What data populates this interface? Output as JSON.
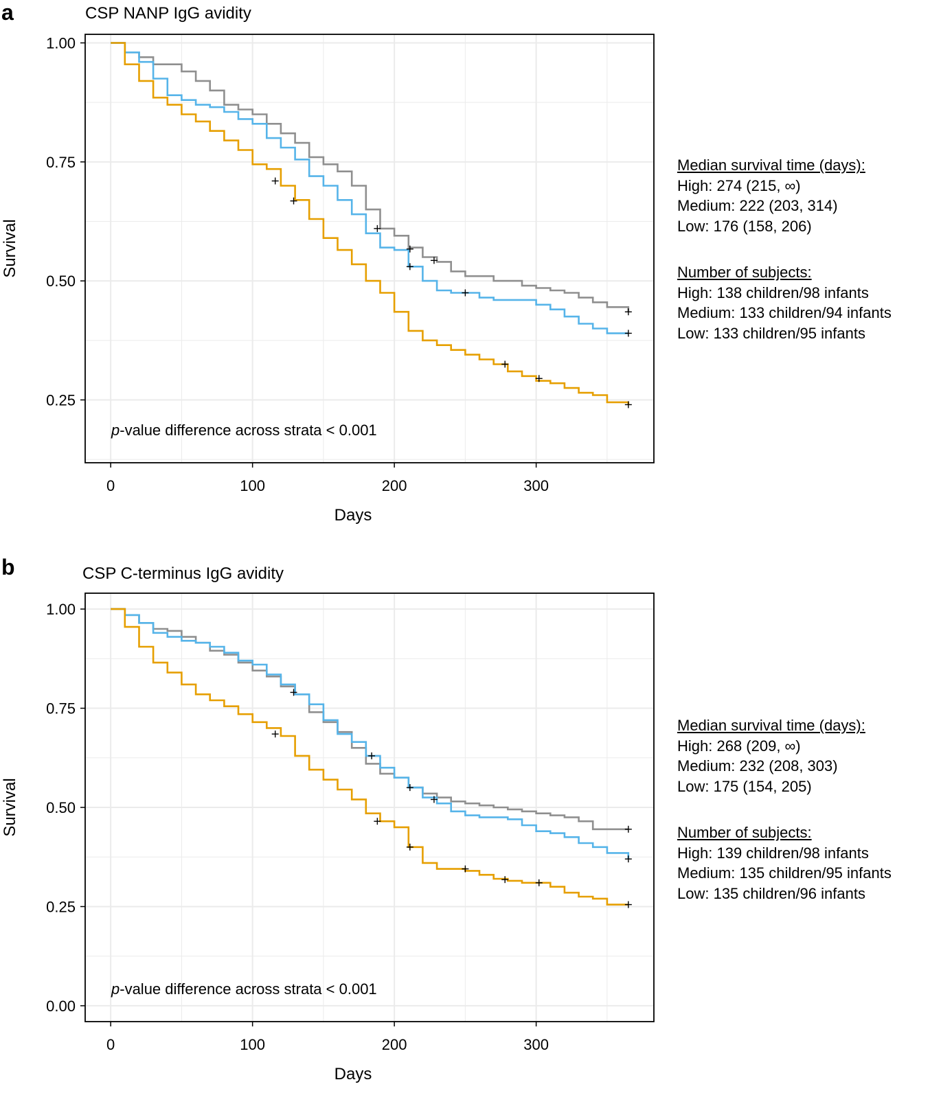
{
  "colors": {
    "high": "#8f8f8f",
    "medium": "#56b4e9",
    "low": "#e69f00",
    "censor": "#000000",
    "grid": "#ebebeb"
  },
  "chart_data": [
    {
      "type": "line",
      "panel": "a",
      "title": "CSP NANP IgG avidity",
      "xlabel": "Days",
      "ylabel": "Survival",
      "xlim": [
        -18,
        383
      ],
      "ylim": [
        0.118,
        1.018
      ],
      "xticks": [
        0,
        100,
        200,
        300
      ],
      "xtick_labels": [
        "0",
        "100",
        "200",
        "300"
      ],
      "yticks": [
        0.25,
        0.5,
        0.75,
        1.0
      ],
      "ytick_labels": [
        "0.25",
        "0.50",
        "0.75",
        "1.00"
      ],
      "pvalue_prefix": "p",
      "pvalue_text": "-value difference across strata  < 0.001",
      "series": [
        {
          "name": "High",
          "color_key": "high",
          "x": [
            0,
            10,
            20,
            30,
            40,
            50,
            60,
            70,
            80,
            90,
            100,
            110,
            120,
            130,
            140,
            150,
            160,
            170,
            180,
            190,
            200,
            210,
            220,
            230,
            240,
            250,
            260,
            270,
            280,
            290,
            300,
            310,
            320,
            330,
            340,
            350,
            365
          ],
          "y": [
            1.0,
            0.98,
            0.97,
            0.955,
            0.955,
            0.94,
            0.92,
            0.9,
            0.87,
            0.86,
            0.85,
            0.83,
            0.81,
            0.79,
            0.76,
            0.745,
            0.73,
            0.7,
            0.65,
            0.61,
            0.595,
            0.57,
            0.55,
            0.54,
            0.52,
            0.51,
            0.51,
            0.5,
            0.5,
            0.49,
            0.485,
            0.48,
            0.475,
            0.465,
            0.455,
            0.445,
            0.435
          ],
          "censor_x": [
            188,
            211,
            228,
            365
          ],
          "censor_y": [
            0.61,
            0.567,
            0.543,
            0.435
          ]
        },
        {
          "name": "Medium",
          "color_key": "medium",
          "x": [
            0,
            10,
            20,
            30,
            40,
            50,
            60,
            70,
            80,
            90,
            100,
            110,
            120,
            130,
            140,
            150,
            160,
            170,
            180,
            190,
            200,
            210,
            220,
            230,
            240,
            250,
            260,
            270,
            280,
            290,
            300,
            310,
            320,
            330,
            340,
            350,
            365
          ],
          "y": [
            1.0,
            0.98,
            0.96,
            0.925,
            0.89,
            0.88,
            0.87,
            0.865,
            0.855,
            0.84,
            0.83,
            0.8,
            0.78,
            0.755,
            0.72,
            0.7,
            0.67,
            0.64,
            0.6,
            0.57,
            0.565,
            0.53,
            0.5,
            0.48,
            0.475,
            0.475,
            0.465,
            0.46,
            0.46,
            0.46,
            0.45,
            0.44,
            0.425,
            0.41,
            0.4,
            0.39,
            0.39
          ],
          "censor_x": [
            211,
            250,
            365
          ],
          "censor_y": [
            0.53,
            0.475,
            0.39
          ]
        },
        {
          "name": "Low",
          "color_key": "low",
          "x": [
            0,
            10,
            20,
            30,
            40,
            50,
            60,
            70,
            80,
            90,
            100,
            110,
            120,
            130,
            140,
            150,
            160,
            170,
            180,
            190,
            200,
            210,
            220,
            230,
            240,
            250,
            260,
            270,
            280,
            290,
            300,
            310,
            320,
            330,
            340,
            350,
            365
          ],
          "y": [
            1.0,
            0.955,
            0.92,
            0.885,
            0.87,
            0.85,
            0.835,
            0.815,
            0.795,
            0.775,
            0.745,
            0.735,
            0.7,
            0.67,
            0.63,
            0.59,
            0.565,
            0.535,
            0.5,
            0.475,
            0.435,
            0.395,
            0.375,
            0.365,
            0.355,
            0.345,
            0.335,
            0.325,
            0.31,
            0.3,
            0.29,
            0.285,
            0.275,
            0.265,
            0.26,
            0.245,
            0.24
          ],
          "censor_x": [
            116,
            129,
            278,
            302,
            365
          ],
          "censor_y": [
            0.71,
            0.668,
            0.325,
            0.295,
            0.24
          ]
        }
      ],
      "legend": {
        "median_header": "Median survival time (days):",
        "median_lines": [
          "High: 274 (215, ∞)",
          "Medium: 222 (203, 314)",
          "Low: 176 (158, 206)"
        ],
        "subjects_header": "Number of subjects:",
        "subjects_lines": [
          "High: 138 children/98 infants",
          "Medium: 133 children/94 infants",
          "Low: 133 children/95 infants"
        ]
      }
    },
    {
      "type": "line",
      "panel": "b",
      "title": "CSP C-terminus IgG avidity",
      "xlabel": "Days",
      "ylabel": "Survival",
      "xlim": [
        -18,
        383
      ],
      "ylim": [
        -0.04,
        1.04
      ],
      "xticks": [
        0,
        100,
        200,
        300
      ],
      "xtick_labels": [
        "0",
        "100",
        "200",
        "300"
      ],
      "yticks": [
        0.0,
        0.25,
        0.5,
        0.75,
        1.0
      ],
      "ytick_labels": [
        "0.00",
        "0.25",
        "0.50",
        "0.75",
        "1.00"
      ],
      "pvalue_prefix": "p",
      "pvalue_text": "-value difference across strata  < 0.001",
      "series": [
        {
          "name": "High",
          "color_key": "high",
          "x": [
            0,
            10,
            20,
            30,
            40,
            50,
            60,
            70,
            80,
            90,
            100,
            110,
            120,
            130,
            140,
            150,
            160,
            170,
            180,
            190,
            200,
            210,
            220,
            230,
            240,
            250,
            260,
            270,
            280,
            290,
            300,
            310,
            320,
            330,
            340,
            350,
            365
          ],
          "y": [
            1.0,
            0.985,
            0.965,
            0.95,
            0.945,
            0.93,
            0.915,
            0.895,
            0.885,
            0.865,
            0.845,
            0.83,
            0.805,
            0.785,
            0.74,
            0.715,
            0.69,
            0.65,
            0.61,
            0.585,
            0.575,
            0.55,
            0.535,
            0.525,
            0.515,
            0.51,
            0.505,
            0.5,
            0.495,
            0.49,
            0.485,
            0.48,
            0.475,
            0.465,
            0.445,
            0.445,
            0.445
          ],
          "censor_x": [
            129,
            365
          ],
          "censor_y": [
            0.79,
            0.445
          ]
        },
        {
          "name": "Medium",
          "color_key": "medium",
          "x": [
            0,
            10,
            20,
            30,
            40,
            50,
            60,
            70,
            80,
            90,
            100,
            110,
            120,
            130,
            140,
            150,
            160,
            170,
            180,
            190,
            200,
            210,
            220,
            230,
            240,
            250,
            260,
            270,
            280,
            290,
            300,
            310,
            320,
            330,
            340,
            350,
            365
          ],
          "y": [
            1.0,
            0.985,
            0.965,
            0.94,
            0.93,
            0.92,
            0.915,
            0.905,
            0.89,
            0.87,
            0.86,
            0.835,
            0.81,
            0.785,
            0.76,
            0.72,
            0.685,
            0.665,
            0.63,
            0.6,
            0.575,
            0.55,
            0.525,
            0.51,
            0.49,
            0.48,
            0.475,
            0.475,
            0.47,
            0.455,
            0.44,
            0.435,
            0.425,
            0.41,
            0.4,
            0.385,
            0.37
          ],
          "censor_x": [
            184,
            211,
            228,
            365
          ],
          "censor_y": [
            0.63,
            0.55,
            0.52,
            0.37
          ]
        },
        {
          "name": "Low",
          "color_key": "low",
          "x": [
            0,
            10,
            20,
            30,
            40,
            50,
            60,
            70,
            80,
            90,
            100,
            110,
            120,
            130,
            140,
            150,
            160,
            170,
            180,
            190,
            200,
            210,
            220,
            230,
            240,
            250,
            260,
            270,
            280,
            290,
            300,
            310,
            320,
            330,
            340,
            350,
            365
          ],
          "y": [
            1.0,
            0.955,
            0.905,
            0.865,
            0.84,
            0.81,
            0.785,
            0.77,
            0.755,
            0.735,
            0.715,
            0.7,
            0.68,
            0.63,
            0.595,
            0.57,
            0.545,
            0.52,
            0.485,
            0.465,
            0.45,
            0.4,
            0.36,
            0.345,
            0.345,
            0.34,
            0.33,
            0.32,
            0.315,
            0.31,
            0.31,
            0.3,
            0.285,
            0.275,
            0.27,
            0.255,
            0.255
          ],
          "censor_x": [
            116,
            188,
            211,
            250,
            278,
            302,
            365
          ],
          "censor_y": [
            0.685,
            0.465,
            0.4,
            0.345,
            0.318,
            0.31,
            0.255
          ]
        }
      ],
      "legend": {
        "median_header": "Median survival time (days):",
        "median_lines": [
          "High: 268 (209, ∞)",
          "Medium: 232 (208, 303)",
          "Low: 175 (154, 205)"
        ],
        "subjects_header": "Number of subjects:",
        "subjects_lines": [
          "High: 139 children/98 infants",
          "Medium: 135 children/95 infants",
          "Low: 135 children/96 infants"
        ]
      }
    }
  ]
}
